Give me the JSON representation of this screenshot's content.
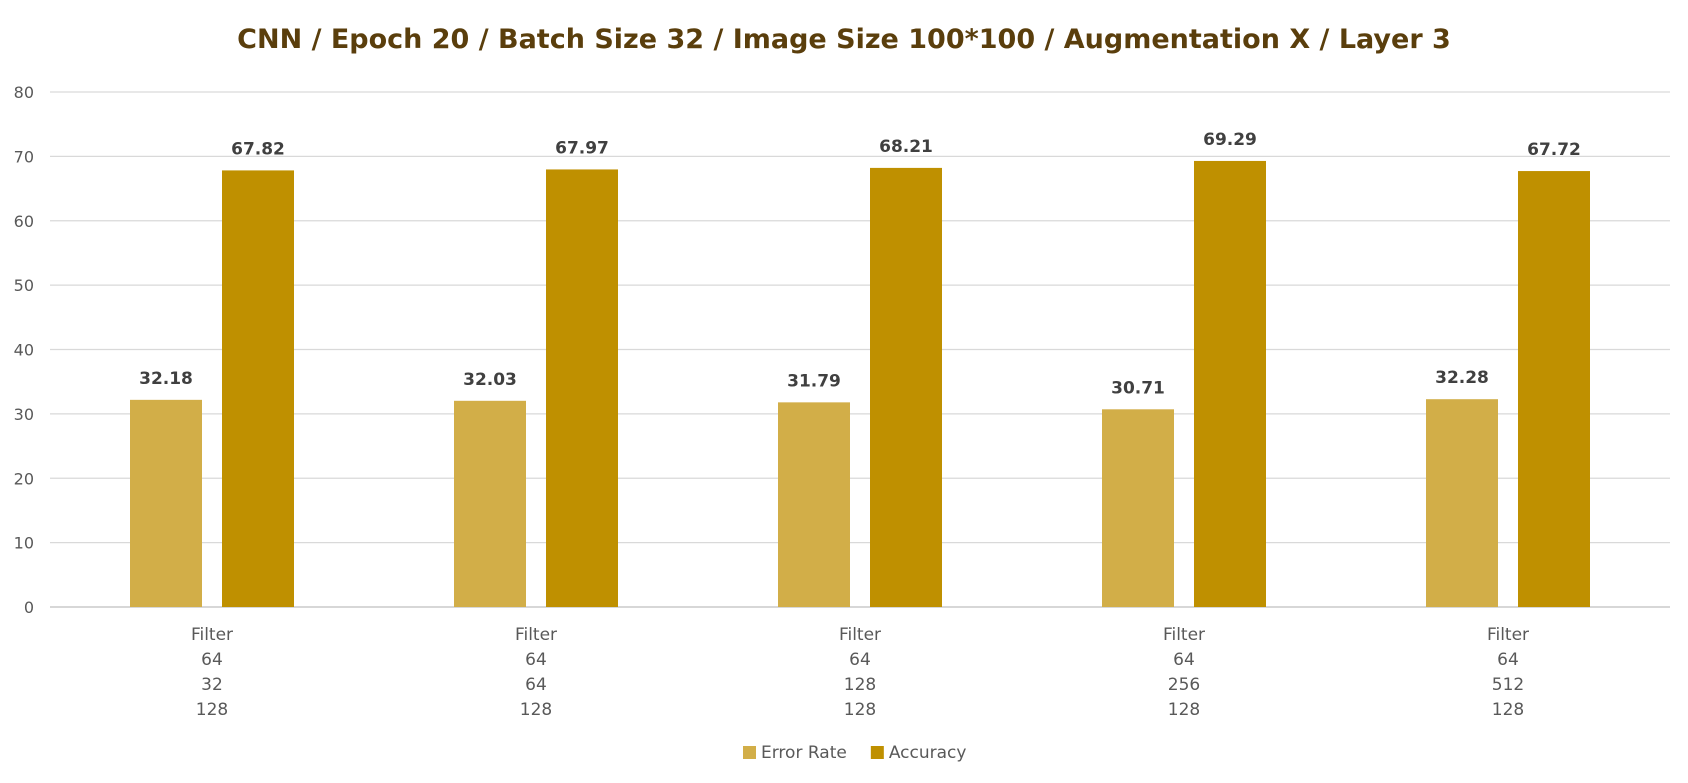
{
  "chart_data": {
    "type": "bar",
    "title": "CNN / Epoch 20 / Batch Size 32 / Image Size 100*100 / Augmentation X / Layer 3",
    "categories": [
      [
        "Filter",
        "64",
        "32",
        "128"
      ],
      [
        "Filter",
        "64",
        "64",
        "128"
      ],
      [
        "Filter",
        "64",
        "128",
        "128"
      ],
      [
        "Filter",
        "64",
        "256",
        "128"
      ],
      [
        "Filter",
        "64",
        "512",
        "128"
      ]
    ],
    "series": [
      {
        "name": "Error Rate",
        "color": "#d2ae48",
        "values": [
          32.18,
          32.03,
          31.79,
          30.71,
          32.28
        ]
      },
      {
        "name": "Accuracy",
        "color": "#bf9000",
        "values": [
          67.82,
          67.97,
          68.21,
          69.29,
          67.72
        ]
      }
    ],
    "ylim": [
      0,
      80
    ],
    "yticks": [
      0,
      10,
      20,
      30,
      40,
      50,
      60,
      70,
      80
    ],
    "grid": true,
    "legend": "bottom"
  }
}
